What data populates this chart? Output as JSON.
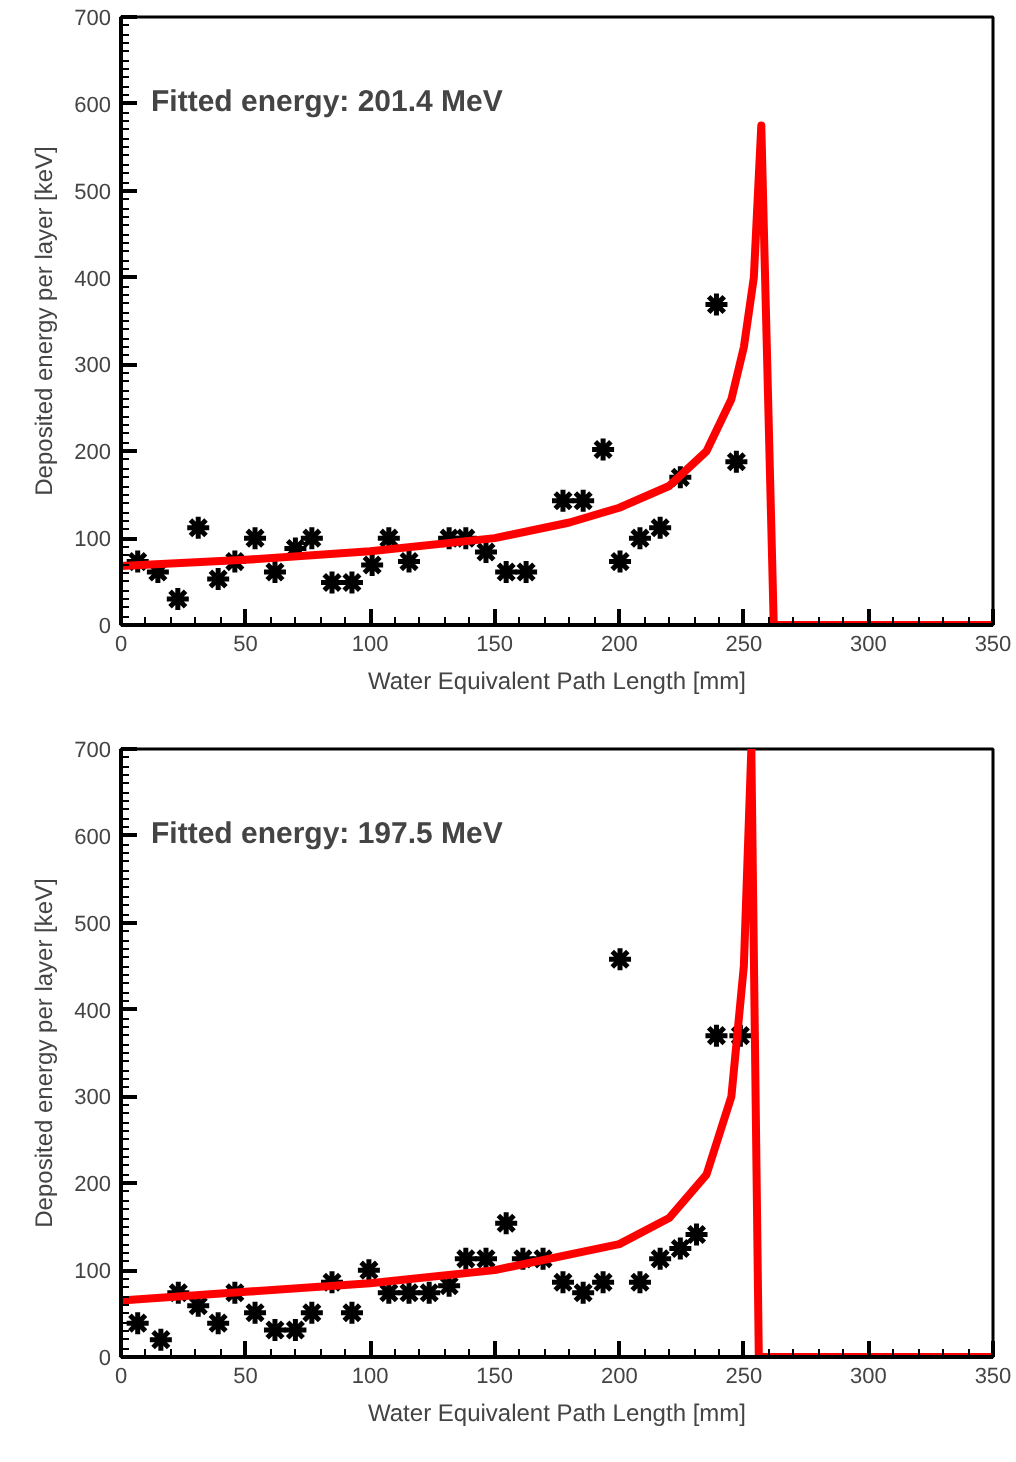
{
  "chart_data": [
    {
      "type": "scatter",
      "annotations": [
        "Fitted energy: 201.4 MeV"
      ],
      "xlabel": "Water Equivalent Path Length [mm]",
      "ylabel": "Deposited energy per layer [keV]",
      "xlim": [
        0,
        350
      ],
      "ylim": [
        0,
        700
      ],
      "xticks": [
        0,
        50,
        100,
        150,
        200,
        250,
        300,
        350
      ],
      "yticks": [
        0,
        100,
        200,
        300,
        400,
        500,
        600,
        700
      ],
      "grid": false,
      "marker": "cross",
      "series": [
        {
          "color": "#000000",
          "x": [
            6.7,
            14.8,
            22.8,
            31,
            39,
            45.7,
            53.8,
            61.8,
            70,
            76.6,
            84.7,
            92.7,
            100.8,
            107.5,
            115.6,
            131.7,
            138.4,
            146.5,
            154.6,
            162.6,
            177.4,
            185.5,
            193.5,
            200.3,
            208.3,
            216.4,
            224.5,
            239,
            247
          ],
          "values": [
            73,
            61,
            30,
            112,
            53,
            73,
            100,
            61,
            88,
            100,
            49,
            49,
            69,
            100,
            73,
            100,
            100,
            84,
            61,
            61,
            143,
            143,
            202,
            73,
            100,
            112,
            170,
            369,
            188
          ]
        },
        {
          "type": "line",
          "color": "#ff0000",
          "line_style": "solid",
          "marker": "none",
          "x": [
            0,
            50,
            100,
            150,
            180,
            200,
            220,
            235,
            245,
            250,
            254,
            257,
            262,
            350
          ],
          "values": [
            68,
            75,
            85,
            100,
            118,
            135,
            160,
            200,
            260,
            320,
            400,
            575,
            0,
            0
          ]
        }
      ]
    },
    {
      "type": "scatter",
      "annotations": [
        "Fitted energy: 197.5 MeV"
      ],
      "xlabel": "Water Equivalent Path Length [mm]",
      "ylabel": "Deposited energy per layer [keV]",
      "xlim": [
        0,
        350
      ],
      "ylim": [
        0,
        700
      ],
      "xticks": [
        0,
        50,
        100,
        150,
        200,
        250,
        300,
        350
      ],
      "yticks": [
        0,
        100,
        200,
        300,
        400,
        500,
        600,
        700
      ],
      "grid": false,
      "marker": "cross",
      "series": [
        {
          "color": "#000000",
          "x": [
            6.7,
            16,
            23,
            31,
            39,
            45.7,
            53.8,
            61.8,
            70,
            76.6,
            84.7,
            92.7,
            99.5,
            107.5,
            115.6,
            123.7,
            131.7,
            138.4,
            146.5,
            154.6,
            161.3,
            169.4,
            177.4,
            185.5,
            193.5,
            200.3,
            208.3,
            216.4,
            224.5,
            231,
            239,
            248.6
          ],
          "values": [
            39,
            20,
            74,
            59,
            39,
            74,
            51,
            31,
            31,
            51,
            86,
            51,
            100,
            74,
            74,
            74,
            82,
            113,
            113,
            154,
            113,
            113,
            86,
            74,
            86,
            458,
            86,
            113,
            125,
            141,
            370,
            370
          ]
        },
        {
          "type": "line",
          "color": "#ff0000",
          "line_style": "solid",
          "marker": "none",
          "x": [
            0,
            50,
            100,
            150,
            200,
            220,
            235,
            245,
            250,
            253,
            256,
            350
          ],
          "values": [
            65,
            75,
            85,
            100,
            130,
            160,
            210,
            300,
            450,
            700,
            0,
            0
          ]
        }
      ]
    }
  ]
}
